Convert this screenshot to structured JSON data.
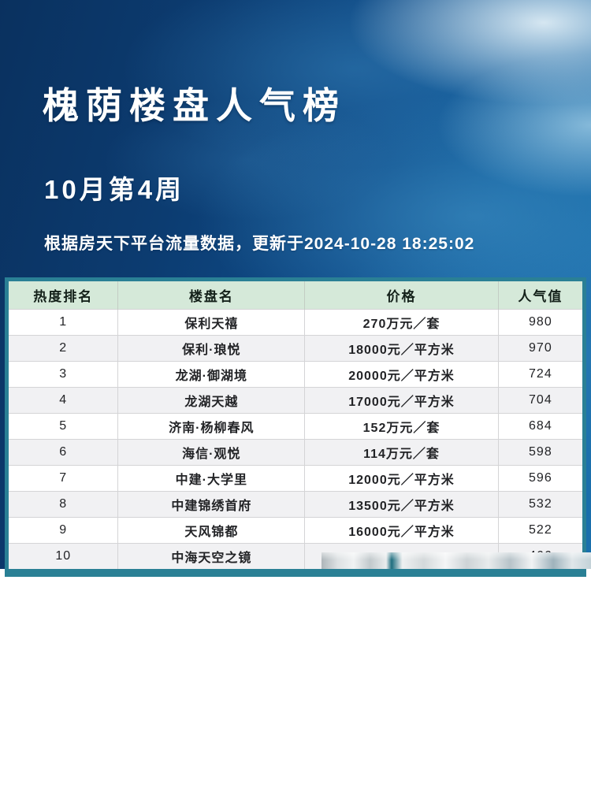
{
  "poster": {
    "title": "槐荫楼盘人气榜",
    "subtitle": "10月第4周",
    "source_note": "根据房天下平台流量数据，更新于2024-10-28 18:25:02"
  },
  "chart_data": {
    "type": "table",
    "title": "槐荫楼盘人气榜",
    "period": "10月第4周",
    "source": "房天下平台流量数据",
    "updated": "2024-10-28 18:25:02",
    "columns": [
      "热度排名",
      "楼盘名",
      "价格",
      "人气值"
    ],
    "rows": [
      [
        "1",
        "保利天禧",
        "270万元／套",
        "980"
      ],
      [
        "2",
        "保利·琅悦",
        "18000元／平方米",
        "970"
      ],
      [
        "3",
        "龙湖·御湖境",
        "20000元／平方米",
        "724"
      ],
      [
        "4",
        "龙湖天越",
        "17000元／平方米",
        "704"
      ],
      [
        "5",
        "济南·杨柳春风",
        "152万元／套",
        "684"
      ],
      [
        "6",
        "海信·观悦",
        "114万元／套",
        "598"
      ],
      [
        "7",
        "中建·大学里",
        "12000元／平方米",
        "596"
      ],
      [
        "8",
        "中建锦绣首府",
        "13500元／平方米",
        "532"
      ],
      [
        "9",
        "天风锦都",
        "16000元／平方米",
        "522"
      ],
      [
        "10",
        "中海天空之镜",
        "",
        "466"
      ]
    ]
  },
  "colors": {
    "sky_dark": "#0a315f",
    "sky_light": "#1a70ad",
    "table_border_teal": "#2a8095",
    "header_green": "#d5e9d9",
    "row_alt_gray": "#f1f1f3",
    "text_white": "#ffffff",
    "text_dark": "#222326"
  }
}
